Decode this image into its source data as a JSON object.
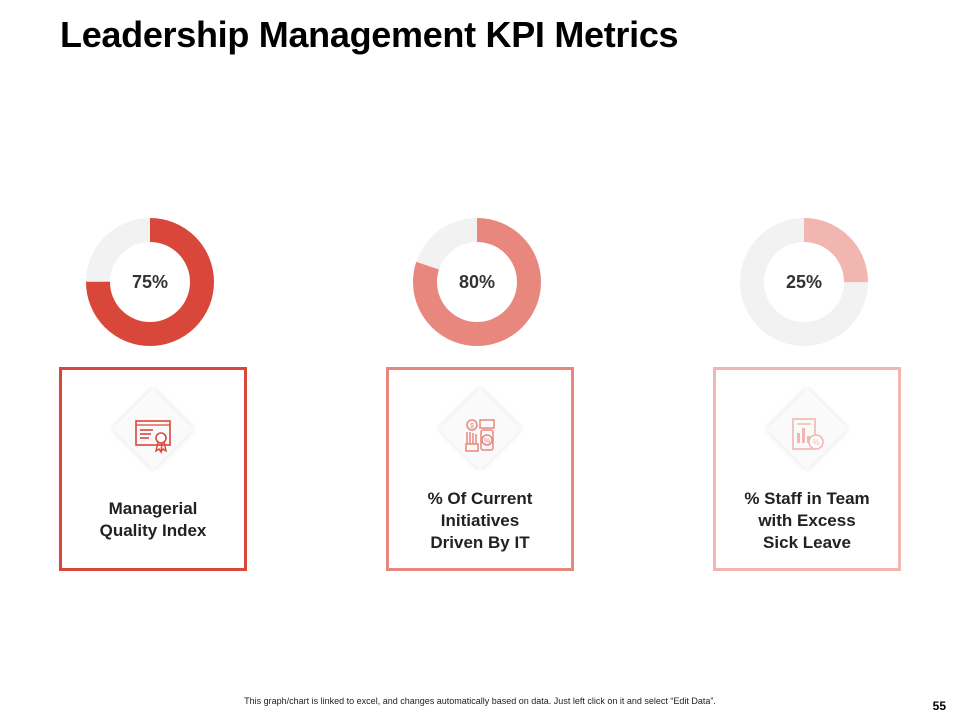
{
  "title": "Leadership Management KPI Metrics",
  "chart_data": [
    {
      "type": "pie",
      "variant": "donut",
      "label": "75%",
      "value": 75,
      "color": "#d9473b",
      "track_color": "#f2f2f2",
      "caption": "Managerial Quality Index",
      "icon": "certificate-icon"
    },
    {
      "type": "pie",
      "variant": "donut",
      "label": "80%",
      "value": 80,
      "color": "#e8877e",
      "track_color": "#f2f2f2",
      "caption": "% Of Current Initiatives Driven By IT",
      "icon": "money-hand-percent-icon"
    },
    {
      "type": "pie",
      "variant": "donut",
      "label": "25%",
      "value": 25,
      "color": "#f1b6b0",
      "track_color": "#f2f2f2",
      "caption": "% Staff in Team with Excess Sick Leave",
      "icon": "report-percent-icon"
    }
  ],
  "cards": [
    {
      "label_lines": [
        "Managerial",
        "Quality Index"
      ],
      "border_color": "#d9473b"
    },
    {
      "label_lines": [
        "% Of Current",
        "Initiatives",
        "Driven By IT"
      ],
      "border_color": "#e8877e"
    },
    {
      "label_lines": [
        "% Staff in Team",
        "with Excess",
        "Sick Leave"
      ],
      "border_color": "#f1b6b0"
    }
  ],
  "footnote": "This graph/chart is linked to excel, and changes automatically based on data. Just left click on it and select “Edit Data”.",
  "page_number": "55"
}
